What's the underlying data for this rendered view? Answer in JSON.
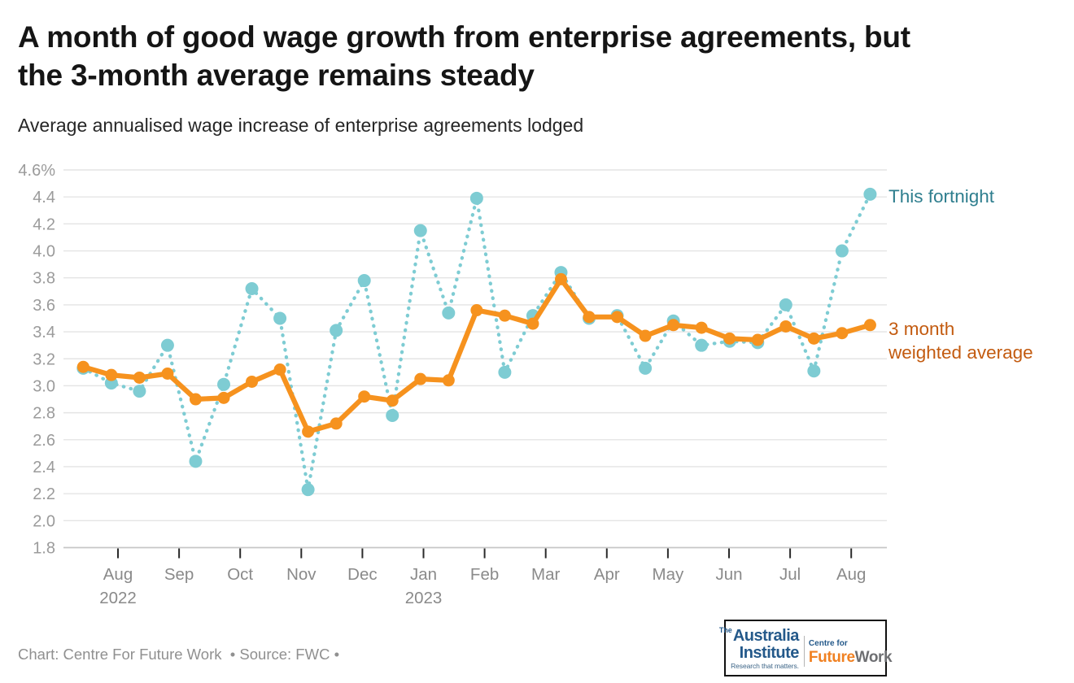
{
  "header": {
    "title_lines": [
      "A month of good wage growth from enterprise agreements, but",
      "the 3-month average remains steady"
    ],
    "subtitle": "Average annualised wage increase of enterprise agreements lodged"
  },
  "chart_data": {
    "type": "line",
    "y_axis": {
      "ylim": [
        1.8,
        4.6
      ],
      "tick_step": 0.2,
      "tick_labels": [
        "4.6%",
        "4.4",
        "4.2",
        "4.0",
        "3.8",
        "3.6",
        "3.4",
        "3.2",
        "3.0",
        "2.8",
        "2.6",
        "2.4",
        "2.2",
        "2.0",
        "1.8"
      ],
      "grid": true
    },
    "x_axis": {
      "months": [
        {
          "label": "Aug",
          "year": "2022"
        },
        {
          "label": "Sep"
        },
        {
          "label": "Oct"
        },
        {
          "label": "Nov"
        },
        {
          "label": "Dec"
        },
        {
          "label": "Jan",
          "year": "2023"
        },
        {
          "label": "Feb"
        },
        {
          "label": "Mar"
        },
        {
          "label": "Apr"
        },
        {
          "label": "May"
        },
        {
          "label": "Jun"
        },
        {
          "label": "Jul"
        },
        {
          "label": "Aug"
        }
      ]
    },
    "series": [
      {
        "name": "This fortnight",
        "style": "dotted",
        "color": "#7eccd3",
        "label_color": "#2e7e8e",
        "values": [
          3.13,
          3.02,
          2.96,
          3.3,
          2.44,
          3.01,
          3.72,
          3.5,
          2.23,
          3.41,
          3.78,
          2.78,
          4.15,
          3.54,
          4.39,
          3.1,
          3.52,
          3.84,
          3.5,
          3.52,
          3.13,
          3.48,
          3.3,
          3.33,
          3.32,
          3.6,
          3.11,
          4.0,
          4.42
        ]
      },
      {
        "name": "3 month weighted average",
        "style": "solid",
        "color": "#f6921e",
        "label_color": "#c35b10",
        "values": [
          3.14,
          3.08,
          3.06,
          3.09,
          2.9,
          2.91,
          3.03,
          3.12,
          2.66,
          2.72,
          2.92,
          2.89,
          3.05,
          3.04,
          3.56,
          3.52,
          3.46,
          3.79,
          3.51,
          3.51,
          3.37,
          3.45,
          3.43,
          3.35,
          3.34,
          3.44,
          3.35,
          3.39,
          3.45
        ]
      }
    ],
    "legend_position": "right"
  },
  "legend": {
    "fortnight_label": "This fortnight",
    "weighted_line1": "3 month",
    "weighted_line2": "weighted average"
  },
  "footer": {
    "credit": "Chart: Centre For Future Work  • Source: FWC •"
  },
  "logo": {
    "the": "The",
    "australia": "Australia",
    "institute": "Institute",
    "tagline": "Research that matters.",
    "centre_for": "Centre for",
    "future": "Future",
    "work": "Work",
    "navy": "#24598a",
    "orange": "#f08122",
    "gray": "#6e6f72"
  }
}
